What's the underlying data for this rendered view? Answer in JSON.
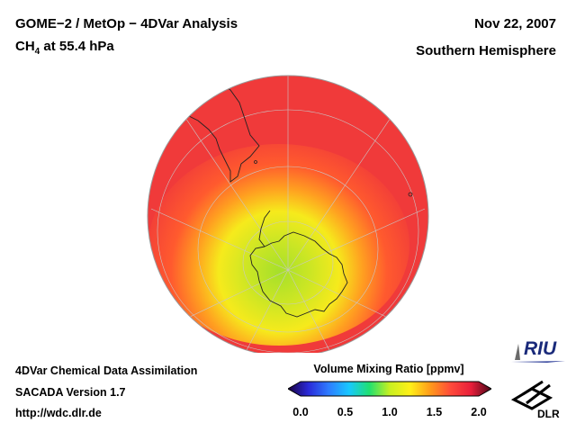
{
  "header": {
    "title_line1": "GOME−2 / MetOp − 4DVar Analysis",
    "species": "CH",
    "species_subscript": "4",
    "pressure_text": " at 55.4 hPa",
    "date": "Nov 22, 2007",
    "region": "Southern Hemisphere"
  },
  "footer": {
    "line1": "4DVar Chemical Data Assimilation",
    "line2": "SACADA Version 1.7",
    "line3": "http://wdc.dlr.de"
  },
  "colorbar": {
    "title": "Volume Mixing Ratio [ppmv]",
    "min": 0.0,
    "max": 2.0,
    "ticks": [
      "0.0",
      "0.5",
      "1.0",
      "1.5",
      "2.0"
    ],
    "tick_values": [
      0.0,
      0.5,
      1.0,
      1.5,
      2.0
    ],
    "colors": [
      "#1a0040",
      "#2a2ad8",
      "#2e7cff",
      "#18c8ff",
      "#20e070",
      "#c8f020",
      "#fff018",
      "#ff9a1a",
      "#ff4a3a",
      "#e81e3a",
      "#4a0818"
    ]
  },
  "map": {
    "ocean_color": "#f23a3a",
    "outer_field_color": "#f04040",
    "mid_ring_color": "#ff9020",
    "inner_color": "#e6f01e",
    "pole_color": "#a0e02a"
  },
  "logos": {
    "riu_text": "RIU",
    "dlr_text": "DLR"
  }
}
